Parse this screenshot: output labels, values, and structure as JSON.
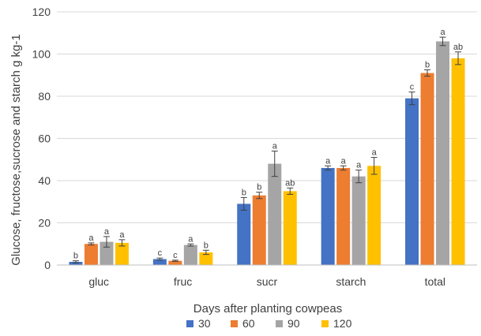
{
  "chart_data": {
    "type": "bar",
    "xlabel": "Days after planting cowpeas",
    "ylabel": "Glucose, fructose,sucrose and starch  g kg-1",
    "ylim": [
      0,
      120
    ],
    "yticks": [
      "0",
      "20",
      "40",
      "60",
      "80",
      "100",
      "120"
    ],
    "grid": "horizontal",
    "legend": "bottom",
    "categories": [
      "gluc",
      "fruc",
      "sucr",
      "starch",
      "total"
    ],
    "series": [
      {
        "name": "30",
        "color": "#4472C4",
        "values": [
          1.5,
          2.8,
          29,
          46,
          79
        ],
        "errors": [
          0.5,
          0.5,
          3,
          1,
          3
        ],
        "letters": [
          "b",
          "c",
          "b",
          "a",
          "c"
        ]
      },
      {
        "name": "60",
        "color": "#ED7D31",
        "values": [
          10,
          2,
          33,
          46,
          91
        ],
        "errors": [
          0.5,
          0.3,
          1.5,
          1,
          1.5
        ],
        "letters": [
          "a",
          "c",
          "b",
          "a",
          "b"
        ]
      },
      {
        "name": "90",
        "color": "#A5A5A5",
        "values": [
          11,
          9.5,
          48,
          42,
          106
        ],
        "errors": [
          2.5,
          0.5,
          6,
          3,
          2
        ],
        "letters": [
          "a",
          "a",
          "a",
          "a",
          "a"
        ]
      },
      {
        "name": "120",
        "color": "#FFC000",
        "values": [
          10.5,
          6,
          35,
          47,
          98
        ],
        "errors": [
          1.5,
          1,
          1.5,
          4,
          3
        ],
        "letters": [
          "a",
          "b",
          "ab",
          "a",
          "ab"
        ]
      }
    ]
  }
}
